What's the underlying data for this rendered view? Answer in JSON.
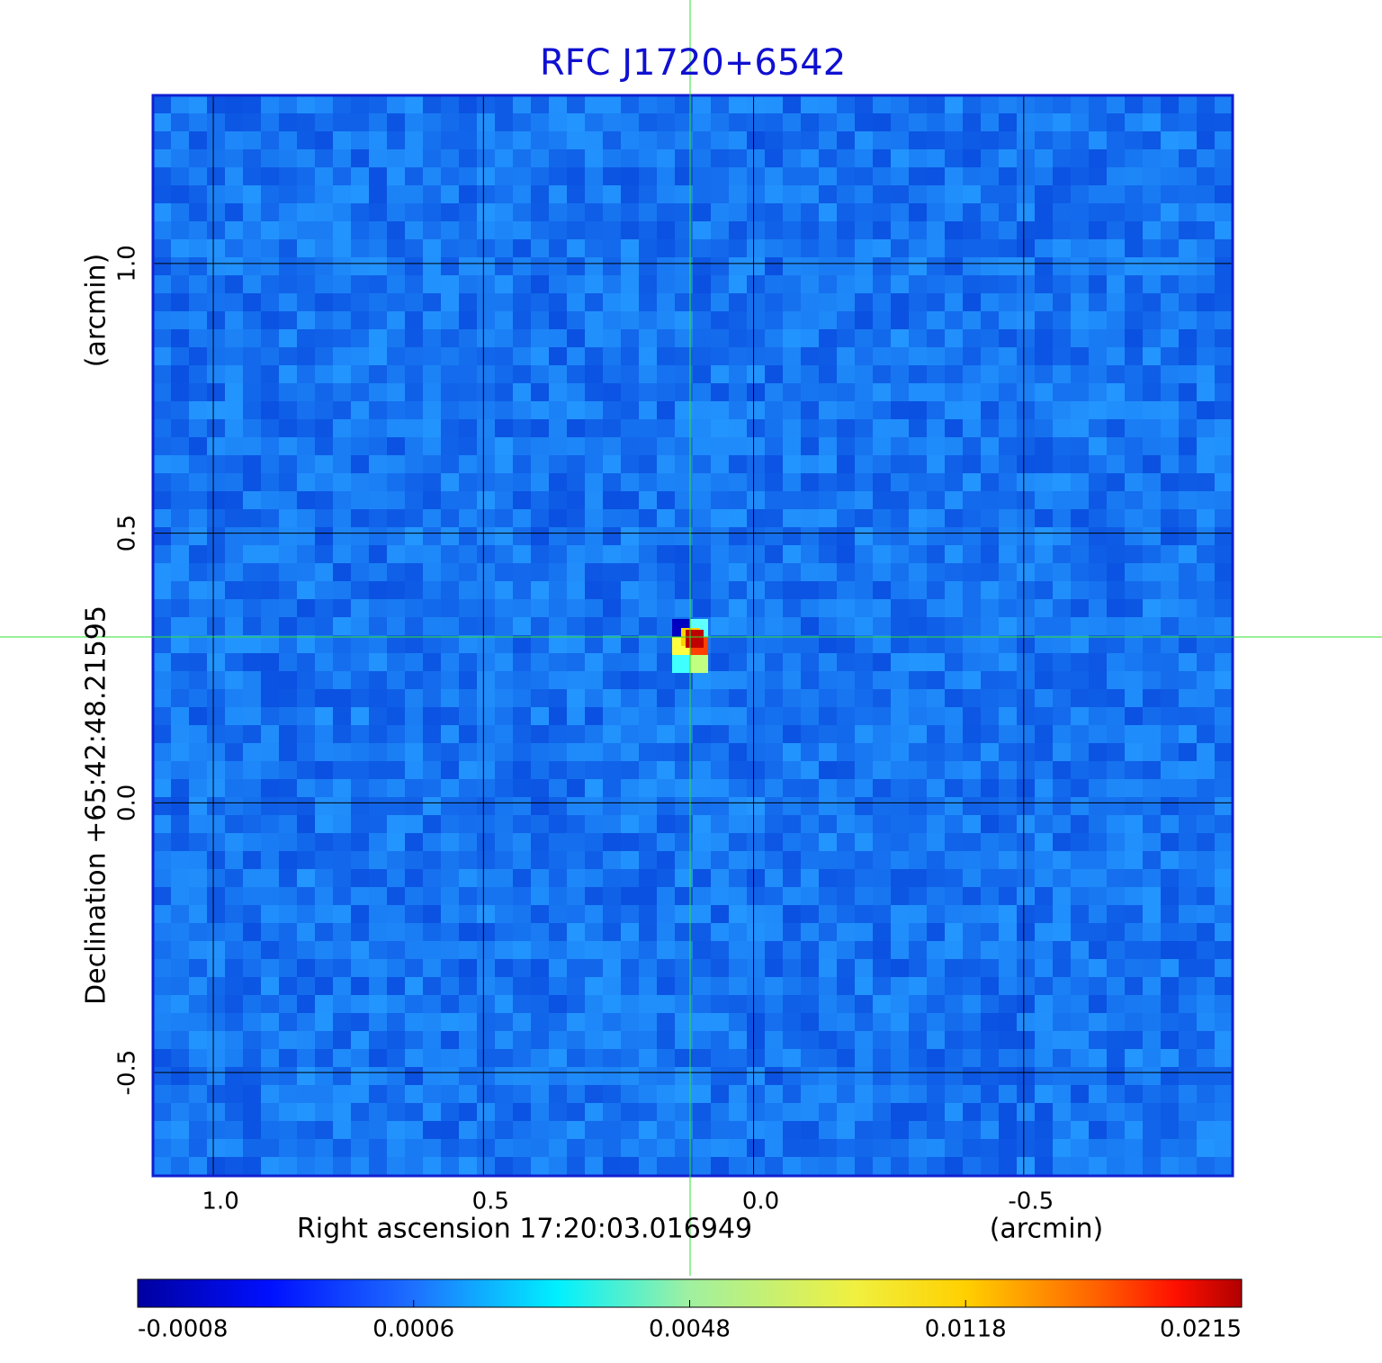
{
  "chart_data": {
    "type": "image",
    "title": "RFC J1720+6542",
    "x_label": "Right ascension  17:20:03.016949",
    "x_unit": "(arcmin)",
    "y_label": "Declination  +65:42:48.21595",
    "y_unit": "(arcmin)",
    "xlim": [
      1.1117,
      -0.8867
    ],
    "ylim": [
      -0.6917,
      1.3117
    ],
    "xticks": [
      {
        "value": 1,
        "label": "1.0"
      },
      0.5,
      {
        "value": 0,
        "label": "0.0"
      },
      -0.5
    ],
    "yticks": [
      {
        "value": 1,
        "label": "1.0"
      },
      0.5,
      {
        "value": 0,
        "label": "0.0"
      },
      -0.5
    ],
    "grid": true,
    "colorbar_ticks": [
      -0.0008,
      0.0006,
      0.0048,
      0.0118,
      0.0215
    ]
  }
}
